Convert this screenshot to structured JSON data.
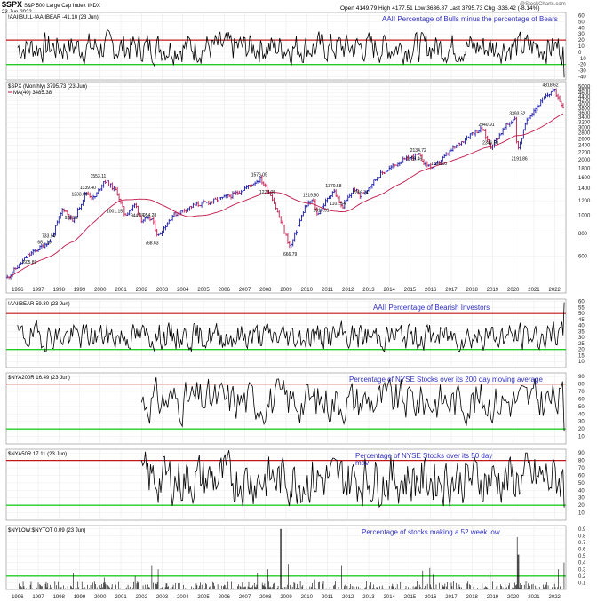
{
  "header": {
    "symbol": "$SPX",
    "name": "S&P 500 Large Cap Index",
    "exchange": "INDX",
    "date": "23-Jun-2022",
    "watermark": "@StockCharts.com",
    "open_label": "Open",
    "open": "4149.79",
    "high_label": "High",
    "high": "4177.51",
    "low_label": "Low",
    "low": "3636.87",
    "last_label": "Last",
    "last": "3795.73",
    "chg_label": "Chg",
    "chg": "-336.42 (-8.14%)"
  },
  "colors": {
    "up": "#1a1aa8",
    "down": "#c0184a",
    "ma": "#c0184a",
    "redline": "#c01818",
    "greenline": "#22cc22",
    "note": "#3030c0"
  },
  "chart_data": [
    {
      "type": "line",
      "legend": "!AAIIBULL-!AAIIBEAR -41.10 (23 Jun)",
      "annotation": "AAII Percentage of Bulls minus the percentage of Bears",
      "ylim": [
        -45,
        65
      ],
      "yticks": [
        -40,
        -30,
        -20,
        -10,
        0,
        10,
        20,
        30,
        40,
        50,
        60
      ],
      "ref_high": 20,
      "ref_low": -20,
      "shape": {
        "mean": 8,
        "amp": 22,
        "start": 1996.0,
        "end": 2022.47,
        "points": 460,
        "seed": 7,
        "last": -41.1
      }
    },
    {
      "type": "line",
      "title": "$SPX (Monthly) 3795.73 (23 Jun)",
      "legend": "MA(40) 3485.38",
      "scale": "log",
      "ylim": [
        380,
        5300
      ],
      "yticks": [
        600,
        800,
        1000,
        1200,
        1400,
        1600,
        1800,
        2000,
        2200,
        2400,
        2600,
        2800,
        3000,
        3200,
        3400,
        3600,
        3800,
        4000,
        4200,
        4400,
        4600,
        4800,
        5000
      ],
      "x_labels": [
        "1996",
        "1997",
        "1998",
        "1999",
        "2000",
        "2001",
        "2002",
        "2003",
        "2004",
        "2005",
        "2006",
        "2007",
        "2008",
        "2009",
        "2010",
        "2011",
        "2012",
        "2013",
        "2014",
        "2015",
        "2016",
        "2017",
        "2018",
        "2019",
        "2020",
        "2021",
        "2022"
      ],
      "anchors": [
        [
          1995.5,
          460
        ],
        [
          1996.5,
          605.89
        ],
        [
          1997.2,
          681.1
        ],
        [
          1997.6,
          733.54
        ],
        [
          1998.2,
          1100
        ],
        [
          1998.7,
          923.32
        ],
        [
          1999.3,
          1339.4
        ],
        [
          1999.7,
          1233.66
        ],
        [
          2000.2,
          1553.11
        ],
        [
          2000.8,
          1350
        ],
        [
          2001.2,
          1001.15
        ],
        [
          2001.7,
          1150
        ],
        [
          2002.0,
          944.75
        ],
        [
          2002.5,
          954.28
        ],
        [
          2002.8,
          768.63
        ],
        [
          2003.5,
          1000
        ],
        [
          2004.5,
          1130
        ],
        [
          2005.5,
          1200
        ],
        [
          2006.5,
          1300
        ],
        [
          2007.75,
          1576.09
        ],
        [
          2008.3,
          1270.05
        ],
        [
          2009.2,
          666.79
        ],
        [
          2009.9,
          1100
        ],
        [
          2010.3,
          1219.8
        ],
        [
          2010.5,
          1010.91
        ],
        [
          2011.3,
          1370.58
        ],
        [
          2011.7,
          1101.54
        ],
        [
          2012.3,
          1400
        ],
        [
          2012.6,
          1266.74
        ],
        [
          2013.5,
          1650
        ],
        [
          2014.5,
          1950
        ],
        [
          2015.4,
          2134.72
        ],
        [
          2015.7,
          1920.46
        ],
        [
          2016.1,
          1810.1
        ],
        [
          2017.0,
          2250
        ],
        [
          2018.0,
          2800
        ],
        [
          2018.5,
          2940.91
        ],
        [
          2018.9,
          2346.58
        ],
        [
          2019.6,
          3000
        ],
        [
          2020.1,
          3393.52
        ],
        [
          2020.2,
          2191.86
        ],
        [
          2020.7,
          3400
        ],
        [
          2021.5,
          4300
        ],
        [
          2021.95,
          4818.62
        ],
        [
          2022.47,
          3795.73
        ]
      ],
      "labels": [
        {
          "x": 1997.3,
          "y": 681.1,
          "text": "681.10"
        },
        {
          "x": 1997.5,
          "y": 733.54,
          "text": "733.54"
        },
        {
          "x": 1996.6,
          "y": 605.89,
          "text": "605.89"
        },
        {
          "x": 1998.6,
          "y": 923.32,
          "text": "923.32"
        },
        {
          "x": 1999.9,
          "y": 1553.11,
          "text": "1553.11"
        },
        {
          "x": 1999.4,
          "y": 1339.4,
          "text": "1339.40"
        },
        {
          "x": 1999.0,
          "y": 1233.66,
          "text": "1233.66"
        },
        {
          "x": 2000.7,
          "y": 1001.15,
          "text": "1001.15"
        },
        {
          "x": 2001.8,
          "y": 944.75,
          "text": "944.75"
        },
        {
          "x": 2002.4,
          "y": 954.28,
          "text": "954.28"
        },
        {
          "x": 2002.5,
          "y": 768.63,
          "text": "768.63"
        },
        {
          "x": 2007.7,
          "y": 1576.09,
          "text": "1576.09"
        },
        {
          "x": 2008.1,
          "y": 1270.05,
          "text": "1270.05"
        },
        {
          "x": 2009.2,
          "y": 666.79,
          "text": "666.79"
        },
        {
          "x": 2010.2,
          "y": 1219.8,
          "text": "1219.80"
        },
        {
          "x": 2010.7,
          "y": 1010.91,
          "text": "1010.91"
        },
        {
          "x": 2011.3,
          "y": 1370.58,
          "text": "1370.58"
        },
        {
          "x": 2011.5,
          "y": 1101.54,
          "text": "1101.54"
        },
        {
          "x": 2012.6,
          "y": 1266.74,
          "text": "1266.74"
        },
        {
          "x": 2015.4,
          "y": 2134.72,
          "text": "2134.72"
        },
        {
          "x": 2015.2,
          "y": 1920.46,
          "text": "1920.46"
        },
        {
          "x": 2016.4,
          "y": 1810.1,
          "text": "1810.10"
        },
        {
          "x": 2018.7,
          "y": 2940.91,
          "text": "2940.91"
        },
        {
          "x": 2018.9,
          "y": 2346.58,
          "text": "2346.58"
        },
        {
          "x": 2020.2,
          "y": 3393.52,
          "text": "3393.52"
        },
        {
          "x": 2020.3,
          "y": 2191.86,
          "text": "2191.86"
        },
        {
          "x": 2021.8,
          "y": 4818.62,
          "text": "4818.62"
        }
      ]
    },
    {
      "type": "line",
      "legend": "!AAIIBEAR 59.30 (23 Jun)",
      "annotation": "AAII Percentage of Bearish Investors",
      "ylim": [
        5,
        62
      ],
      "yticks": [
        10,
        15,
        20,
        25,
        30,
        35,
        40,
        45,
        50,
        55,
        60
      ],
      "ref_high": 50,
      "ref_low": 20,
      "shape": {
        "mean": 31,
        "amp": 10,
        "start": 1996.0,
        "end": 2022.47,
        "points": 460,
        "seed": 19,
        "last": 59.3
      }
    },
    {
      "type": "line",
      "legend": "$NYA200R 16.49 (23 Jun)",
      "annotation": "Percentage of NYSE Stocks over its 200 day moving average",
      "ylim": [
        0,
        95
      ],
      "yticks": [
        10,
        20,
        30,
        40,
        50,
        60,
        70,
        80,
        90
      ],
      "ref_high": 80,
      "ref_low": 20,
      "shape": {
        "mean": 58,
        "amp": 25,
        "start": 2002.0,
        "end": 2022.47,
        "points": 260,
        "seed": 31,
        "last": 16.49
      }
    },
    {
      "type": "line",
      "legend": "$NYA50R 17.11 (23 Jun)",
      "annotation_lines": [
        "Percentage of NYSE Stocks over its 50 day",
        "mav"
      ],
      "ylim": [
        0,
        95
      ],
      "yticks": [
        10,
        20,
        30,
        40,
        50,
        60,
        70,
        80,
        90
      ],
      "ref_high": 80,
      "ref_low": 20,
      "shape": {
        "mean": 55,
        "amp": 30,
        "start": 2002.0,
        "end": 2022.47,
        "points": 330,
        "seed": 43,
        "last": 17.11
      }
    },
    {
      "type": "bar",
      "legend": "$NYLOW:$NYTOT 0.09 (23 Jun)",
      "annotation": "Percentage of stocks making a 52 week low",
      "ylim": [
        0,
        0.95
      ],
      "yticks": [
        0.1,
        0.2,
        0.3,
        0.4,
        0.5,
        0.6,
        0.7,
        0.8,
        0.9
      ],
      "ref_low": 0.2,
      "x_labels": [
        "1996",
        "1997",
        "1998",
        "1999",
        "2000",
        "2001",
        "2002",
        "2003",
        "2004",
        "2005",
        "2006",
        "2007",
        "2008",
        "2009",
        "2010",
        "2011",
        "2012",
        "2013",
        "2014",
        "2015",
        "2016",
        "2017",
        "2018",
        "2019",
        "2020",
        "2021",
        "2022"
      ],
      "spikes": [
        [
          1998.7,
          0.25
        ],
        [
          2000.2,
          0.18
        ],
        [
          2001.7,
          0.2
        ],
        [
          2002.5,
          0.35
        ],
        [
          2002.8,
          0.3
        ],
        [
          2007.6,
          0.25
        ],
        [
          2008.1,
          0.3
        ],
        [
          2008.75,
          0.9
        ],
        [
          2008.85,
          0.55
        ],
        [
          2009.1,
          0.38
        ],
        [
          2010.4,
          0.15
        ],
        [
          2011.7,
          0.35
        ],
        [
          2015.6,
          0.28
        ],
        [
          2015.95,
          0.32
        ],
        [
          2016.1,
          0.22
        ],
        [
          2018.9,
          0.27
        ],
        [
          2020.2,
          0.78
        ],
        [
          2020.25,
          0.52
        ],
        [
          2022.2,
          0.3
        ],
        [
          2022.45,
          0.4
        ]
      ]
    }
  ]
}
